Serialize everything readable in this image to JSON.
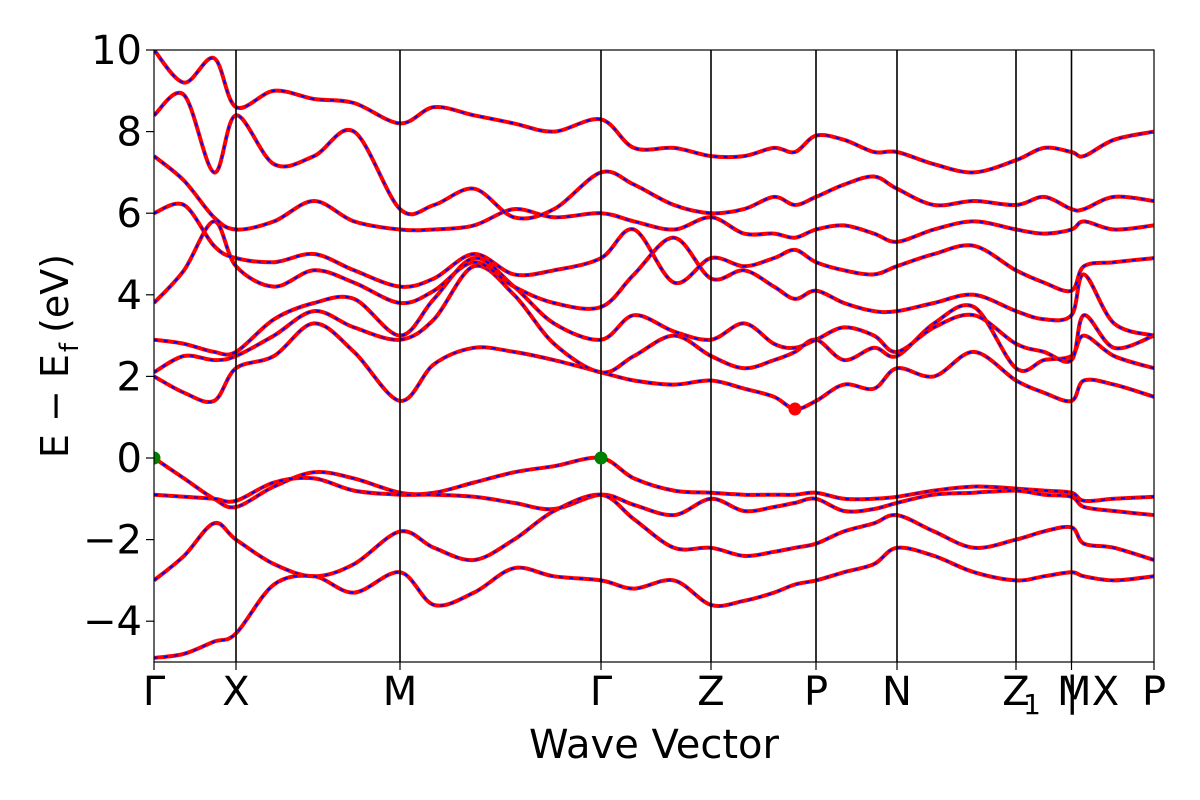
{
  "chart_data": {
    "type": "line",
    "title": "",
    "xlabel": "Wave Vector",
    "ylabel": "E − E_f (eV)",
    "ylabel_main": "E − E",
    "ylabel_sub": "f",
    "ylabel_unit": "(eV)",
    "ylim": [
      -5,
      10
    ],
    "y_ticks": [
      -4,
      -2,
      0,
      2,
      4,
      6,
      8,
      10
    ],
    "xlim": [
      0,
      1
    ],
    "grid": false,
    "high_symmetry_points": [
      {
        "label": "Γ",
        "x": 0.0
      },
      {
        "label": "X",
        "x": 0.082
      },
      {
        "label": "M",
        "x": 0.246
      },
      {
        "label": "Γ",
        "x": 0.447
      },
      {
        "label": "Z",
        "x": 0.557
      },
      {
        "label": "P",
        "x": 0.662
      },
      {
        "label": "N",
        "x": 0.743
      },
      {
        "label": "Z",
        "x": 0.862
      },
      {
        "label": "M",
        "x": 0.9175
      },
      {
        "label": "| X",
        "x": 0.9175
      },
      {
        "label": "P",
        "x": 1.0
      }
    ],
    "z1_subscript": "1",
    "styles": {
      "series_color": "#ff0000",
      "overlay_color": "#0000ff",
      "vbm_color": "#008000",
      "cbm_color": "#ff0000",
      "axis_color": "#000000"
    },
    "markers": [
      {
        "name": "VBM",
        "x": 0.0,
        "y": 0.0,
        "color": "#008000"
      },
      {
        "name": "VBM",
        "x": 0.447,
        "y": 0.0,
        "color": "#008000"
      },
      {
        "name": "CBM",
        "x": 0.641,
        "y": 1.2,
        "color": "#ff0000"
      }
    ],
    "series": [
      {
        "x": [
          0,
          0.03,
          0.06,
          0.082,
          0.12,
          0.16,
          0.2,
          0.246,
          0.28,
          0.32,
          0.36,
          0.4,
          0.447,
          0.48,
          0.52,
          0.557,
          0.59,
          0.62,
          0.641,
          0.662,
          0.69,
          0.72,
          0.743,
          0.78,
          0.82,
          0.862,
          0.89,
          0.9175,
          0.93,
          0.96,
          1.0
        ],
        "y": [
          0,
          -0.5,
          -1.0,
          -1.2,
          -0.7,
          -0.35,
          -0.5,
          -0.85,
          -0.85,
          -0.6,
          -0.35,
          -0.2,
          0,
          -0.5,
          -0.8,
          -0.85,
          -0.9,
          -0.9,
          -0.9,
          -0.85,
          -1.0,
          -1.0,
          -0.95,
          -0.8,
          -0.7,
          -0.75,
          -0.8,
          -0.85,
          -1.05,
          -1.0,
          -0.95
        ]
      },
      {
        "x": [
          0,
          0.03,
          0.06,
          0.082,
          0.12,
          0.16,
          0.2,
          0.246,
          0.28,
          0.32,
          0.36,
          0.4,
          0.447,
          0.48,
          0.52,
          0.557,
          0.59,
          0.62,
          0.641,
          0.662,
          0.69,
          0.72,
          0.743,
          0.78,
          0.82,
          0.862,
          0.89,
          0.9175,
          0.93,
          0.96,
          1.0
        ],
        "y": [
          -0.9,
          -0.95,
          -1.0,
          -1.05,
          -0.6,
          -0.5,
          -0.8,
          -0.9,
          -0.9,
          -0.95,
          -1.1,
          -1.25,
          -0.9,
          -1.15,
          -1.4,
          -1.0,
          -1.3,
          -1.2,
          -1.1,
          -1.0,
          -1.3,
          -1.25,
          -1.1,
          -0.9,
          -0.85,
          -0.8,
          -0.9,
          -0.95,
          -1.2,
          -1.3,
          -1.4
        ]
      },
      {
        "x": [
          0,
          0.03,
          0.06,
          0.082,
          0.12,
          0.16,
          0.2,
          0.246,
          0.28,
          0.32,
          0.36,
          0.4,
          0.447,
          0.48,
          0.52,
          0.557,
          0.59,
          0.62,
          0.641,
          0.662,
          0.69,
          0.72,
          0.743,
          0.78,
          0.82,
          0.862,
          0.89,
          0.9175,
          0.93,
          0.96,
          1.0
        ],
        "y": [
          -3.0,
          -2.4,
          -1.6,
          -2.0,
          -2.6,
          -2.9,
          -2.6,
          -1.8,
          -2.2,
          -2.5,
          -2.0,
          -1.3,
          -0.9,
          -1.5,
          -2.2,
          -2.2,
          -2.4,
          -2.3,
          -2.2,
          -2.1,
          -1.8,
          -1.6,
          -1.4,
          -1.8,
          -2.2,
          -2.0,
          -1.8,
          -1.7,
          -2.1,
          -2.2,
          -2.5
        ]
      },
      {
        "x": [
          0,
          0.03,
          0.06,
          0.082,
          0.12,
          0.16,
          0.2,
          0.246,
          0.28,
          0.32,
          0.36,
          0.4,
          0.447,
          0.48,
          0.52,
          0.557,
          0.59,
          0.62,
          0.641,
          0.662,
          0.69,
          0.72,
          0.743,
          0.78,
          0.82,
          0.862,
          0.89,
          0.9175,
          0.93,
          0.96,
          1.0
        ],
        "y": [
          -4.9,
          -4.8,
          -4.5,
          -4.3,
          -3.1,
          -2.9,
          -3.3,
          -2.8,
          -3.6,
          -3.3,
          -2.7,
          -2.9,
          -3.0,
          -3.2,
          -3.0,
          -3.6,
          -3.5,
          -3.3,
          -3.1,
          -3.0,
          -2.8,
          -2.6,
          -2.2,
          -2.4,
          -2.8,
          -3.0,
          -2.9,
          -2.8,
          -2.9,
          -3.0,
          -2.9
        ]
      },
      {
        "x": [
          0,
          0.03,
          0.06,
          0.082,
          0.12,
          0.16,
          0.2,
          0.246,
          0.28,
          0.32,
          0.36,
          0.4,
          0.447,
          0.48,
          0.52,
          0.557,
          0.59,
          0.62,
          0.641,
          0.662,
          0.69,
          0.72,
          0.743,
          0.78,
          0.82,
          0.862,
          0.89,
          0.9175,
          0.93,
          0.96,
          1.0
        ],
        "y": [
          2.0,
          1.6,
          1.4,
          2.2,
          2.5,
          3.3,
          2.6,
          1.4,
          2.3,
          2.7,
          2.6,
          2.4,
          2.1,
          1.9,
          1.8,
          1.9,
          1.7,
          1.5,
          1.2,
          1.4,
          1.8,
          1.7,
          2.2,
          2.0,
          2.6,
          1.9,
          1.6,
          1.4,
          1.9,
          1.8,
          1.5
        ]
      },
      {
        "x": [
          0,
          0.03,
          0.06,
          0.082,
          0.12,
          0.16,
          0.2,
          0.246,
          0.28,
          0.32,
          0.36,
          0.4,
          0.447,
          0.48,
          0.52,
          0.557,
          0.59,
          0.62,
          0.641,
          0.662,
          0.69,
          0.72,
          0.743,
          0.78,
          0.82,
          0.862,
          0.89,
          0.9175,
          0.93,
          0.96,
          1.0
        ],
        "y": [
          2.1,
          2.5,
          2.4,
          2.5,
          3.0,
          3.6,
          3.2,
          2.9,
          3.4,
          4.7,
          4.0,
          2.8,
          2.1,
          2.5,
          3.0,
          2.5,
          2.2,
          2.4,
          2.6,
          2.9,
          2.4,
          2.7,
          2.5,
          3.3,
          3.7,
          2.2,
          2.4,
          2.5,
          3.0,
          2.5,
          2.2
        ]
      },
      {
        "x": [
          0,
          0.03,
          0.06,
          0.082,
          0.12,
          0.16,
          0.2,
          0.246,
          0.28,
          0.32,
          0.36,
          0.4,
          0.447,
          0.48,
          0.52,
          0.557,
          0.59,
          0.62,
          0.641,
          0.662,
          0.69,
          0.72,
          0.743,
          0.78,
          0.82,
          0.862,
          0.89,
          0.9175,
          0.93,
          0.96,
          1.0
        ],
        "y": [
          2.9,
          2.8,
          2.6,
          2.6,
          3.4,
          3.8,
          3.9,
          3.0,
          3.9,
          4.9,
          4.2,
          3.3,
          2.9,
          3.5,
          3.1,
          2.9,
          3.3,
          2.8,
          2.7,
          2.9,
          3.2,
          3.0,
          2.6,
          3.2,
          3.5,
          2.8,
          2.6,
          2.4,
          3.5,
          2.7,
          3.0
        ]
      },
      {
        "x": [
          0,
          0.03,
          0.06,
          0.082,
          0.12,
          0.16,
          0.2,
          0.246,
          0.28,
          0.32,
          0.36,
          0.4,
          0.447,
          0.48,
          0.52,
          0.557,
          0.59,
          0.62,
          0.641,
          0.662,
          0.69,
          0.72,
          0.743,
          0.78,
          0.82,
          0.862,
          0.89,
          0.9175,
          0.93,
          0.96,
          1.0
        ],
        "y": [
          3.8,
          4.6,
          5.8,
          4.7,
          4.2,
          4.6,
          4.3,
          3.8,
          4.1,
          4.8,
          4.2,
          3.8,
          3.7,
          4.5,
          5.4,
          4.4,
          4.6,
          4.2,
          3.9,
          4.1,
          3.8,
          3.6,
          3.6,
          3.8,
          4.0,
          3.6,
          3.4,
          3.5,
          4.5,
          3.3,
          3.0
        ]
      },
      {
        "x": [
          0,
          0.03,
          0.06,
          0.082,
          0.12,
          0.16,
          0.2,
          0.246,
          0.28,
          0.32,
          0.36,
          0.4,
          0.447,
          0.48,
          0.52,
          0.557,
          0.59,
          0.62,
          0.641,
          0.662,
          0.69,
          0.72,
          0.743,
          0.78,
          0.82,
          0.862,
          0.89,
          0.9175,
          0.93,
          0.96,
          1.0
        ],
        "y": [
          6.0,
          6.2,
          5.2,
          4.9,
          4.8,
          5.0,
          4.6,
          4.2,
          4.4,
          5.0,
          4.5,
          4.6,
          4.9,
          5.6,
          4.3,
          4.9,
          4.7,
          4.9,
          5.1,
          4.8,
          4.6,
          4.5,
          4.7,
          5.0,
          5.2,
          4.6,
          4.3,
          4.1,
          4.7,
          4.8,
          4.9
        ]
      },
      {
        "x": [
          0,
          0.03,
          0.06,
          0.082,
          0.12,
          0.16,
          0.2,
          0.246,
          0.28,
          0.32,
          0.36,
          0.4,
          0.447,
          0.48,
          0.52,
          0.557,
          0.59,
          0.62,
          0.641,
          0.662,
          0.69,
          0.72,
          0.743,
          0.78,
          0.82,
          0.862,
          0.89,
          0.9175,
          0.93,
          0.96,
          1.0
        ],
        "y": [
          7.4,
          6.8,
          5.9,
          5.6,
          5.8,
          6.3,
          5.8,
          5.6,
          5.6,
          5.7,
          6.1,
          5.9,
          6.0,
          5.8,
          5.6,
          5.9,
          5.5,
          5.5,
          5.4,
          5.6,
          5.7,
          5.5,
          5.3,
          5.6,
          5.8,
          5.6,
          5.5,
          5.6,
          5.8,
          5.6,
          5.7
        ]
      },
      {
        "x": [
          0,
          0.03,
          0.06,
          0.082,
          0.12,
          0.16,
          0.2,
          0.246,
          0.28,
          0.32,
          0.36,
          0.4,
          0.447,
          0.48,
          0.52,
          0.557,
          0.59,
          0.62,
          0.641,
          0.662,
          0.69,
          0.72,
          0.743,
          0.78,
          0.82,
          0.862,
          0.89,
          0.9175,
          0.93,
          0.96,
          1.0
        ],
        "y": [
          8.4,
          8.9,
          7.0,
          8.4,
          7.2,
          7.4,
          8.0,
          6.1,
          6.2,
          6.6,
          5.9,
          6.1,
          7.0,
          6.7,
          6.2,
          6.0,
          6.1,
          6.4,
          6.2,
          6.4,
          6.7,
          6.9,
          6.6,
          6.2,
          6.3,
          6.2,
          6.4,
          6.1,
          6.1,
          6.4,
          6.3
        ]
      },
      {
        "x": [
          0,
          0.03,
          0.06,
          0.082,
          0.12,
          0.16,
          0.2,
          0.246,
          0.28,
          0.32,
          0.36,
          0.4,
          0.447,
          0.48,
          0.52,
          0.557,
          0.59,
          0.62,
          0.641,
          0.662,
          0.69,
          0.72,
          0.743,
          0.78,
          0.82,
          0.862,
          0.89,
          0.9175,
          0.93,
          0.96,
          1.0
        ],
        "y": [
          10.0,
          9.2,
          9.8,
          8.6,
          9.0,
          8.8,
          8.7,
          8.2,
          8.6,
          8.4,
          8.2,
          8.0,
          8.3,
          7.6,
          7.6,
          7.4,
          7.4,
          7.6,
          7.5,
          7.9,
          7.8,
          7.5,
          7.5,
          7.2,
          7.0,
          7.3,
          7.6,
          7.5,
          7.4,
          7.8,
          8.0
        ]
      }
    ]
  }
}
